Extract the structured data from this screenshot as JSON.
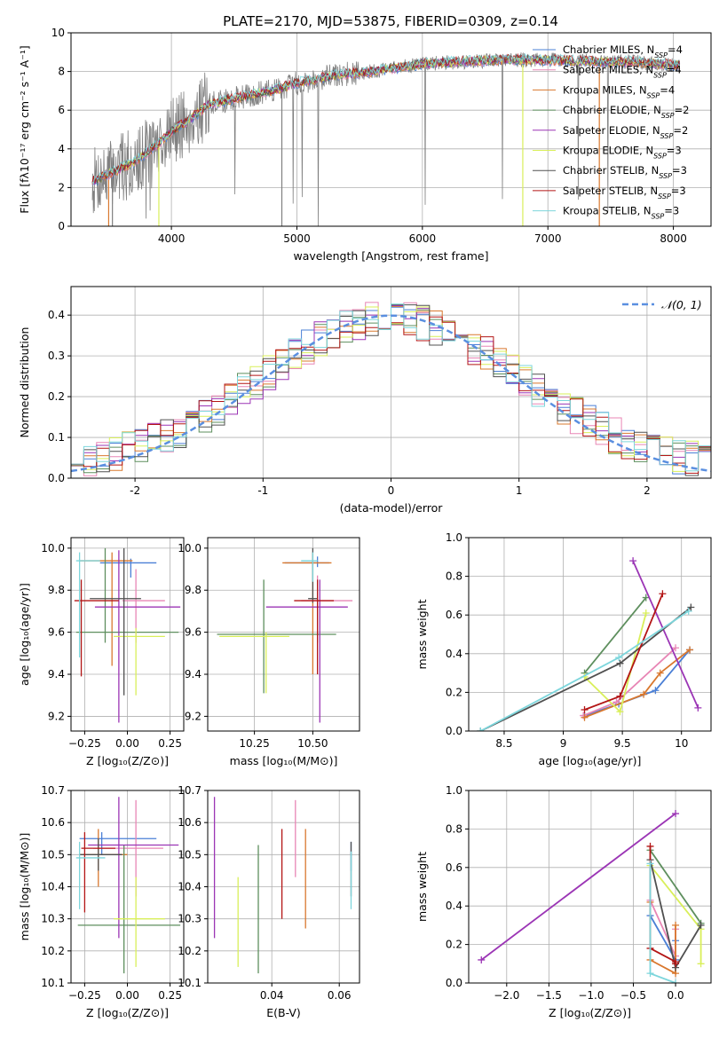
{
  "title": "PLATE=2170, MJD=53875, FIBERID=0309, z=0.14",
  "series": [
    {
      "name": "Chabrier MILES",
      "nssp": "4",
      "color": "#4a7fd6"
    },
    {
      "name": "Salpeter MILES",
      "nssp": "4",
      "color": "#e886b5"
    },
    {
      "name": "Kroupa MILES",
      "nssp": "4",
      "color": "#d9782e"
    },
    {
      "name": "Chabrier ELODIE",
      "nssp": "2",
      "color": "#5e8f5e"
    },
    {
      "name": "Salpeter ELODIE",
      "nssp": "2",
      "color": "#9b35b5"
    },
    {
      "name": "Kroupa ELODIE",
      "nssp": "3",
      "color": "#d9ef5a"
    },
    {
      "name": "Chabrier STELIB",
      "nssp": "3",
      "color": "#505050"
    },
    {
      "name": "Salpeter STELIB",
      "nssp": "3",
      "color": "#b31515"
    },
    {
      "name": "Kroupa STELIB",
      "nssp": "3",
      "color": "#7dd6dc"
    }
  ],
  "chart_data": [
    {
      "id": "spectrum",
      "type": "line",
      "xlabel": "wavelength [Angstrom, rest frame]",
      "ylabel": "Flux [fλ10⁻¹⁷ erg cm⁻² s⁻¹ A⁻¹]",
      "xlim": [
        3200,
        8300
      ],
      "ylim": [
        0,
        10
      ],
      "xticks": [
        4000,
        5000,
        6000,
        7000,
        8000
      ],
      "yticks": [
        0,
        2,
        4,
        6,
        8,
        10
      ],
      "data_color": "#808080",
      "continuum_x": [
        3370,
        3500,
        3700,
        3900,
        4000,
        4100,
        4300,
        4500,
        4800,
        5000,
        5300,
        5600,
        6000,
        6300,
        6600,
        7000,
        7400,
        7700,
        8050
      ],
      "continuum_y": [
        2.3,
        2.7,
        3.3,
        4.3,
        4.9,
        5.3,
        6.3,
        6.6,
        7.0,
        7.4,
        7.8,
        8.0,
        8.4,
        8.5,
        8.6,
        8.6,
        8.5,
        8.5,
        8.3
      ]
    },
    {
      "id": "residuals",
      "type": "step-histogram",
      "xlabel": "(data-model)/error",
      "ylabel": "Normed distribution",
      "xlim": [
        -2.5,
        2.5
      ],
      "ylim": [
        0,
        0.47
      ],
      "xticks": [
        -2,
        -1,
        0,
        1,
        2
      ],
      "yticks": [
        0.0,
        0.1,
        0.2,
        0.3,
        0.4
      ],
      "legend": "𝒩(0, 1)",
      "legend_color": "#5a8fe0",
      "legend_position": "top-right"
    },
    {
      "id": "age-vs-Z",
      "type": "errorbar",
      "xlabel": "Z [log₁₀(Z/Z⊙)]",
      "ylabel": "age  [log₁₀(age/yr)]",
      "xlim": [
        -0.33,
        0.33
      ],
      "ylim": [
        9.13,
        10.05
      ],
      "xticks": [
        -0.25,
        0.0,
        0.25
      ],
      "xticklabels": [
        "−0.25",
        "0.00",
        "0.25"
      ],
      "yticks": [
        9.2,
        9.4,
        9.6,
        9.8,
        10.0
      ],
      "points": [
        {
          "s": 0,
          "x": 0.02,
          "y": 9.93,
          "xerr": [
            0.18,
            0.15
          ],
          "yerr": [
            0.07,
            0.02
          ]
        },
        {
          "s": 1,
          "x": 0.05,
          "y": 9.75,
          "xerr": [
            0.08,
            0.17
          ],
          "yerr": [
            0.2,
            0.15
          ]
        },
        {
          "s": 2,
          "x": -0.09,
          "y": 9.94,
          "xerr": [
            0.19,
            0.12
          ],
          "yerr": [
            0.5,
            0.04
          ]
        },
        {
          "s": 3,
          "x": -0.13,
          "y": 9.6,
          "xerr": [
            0.17,
            0.43
          ],
          "yerr": [
            0.05,
            0.4
          ]
        },
        {
          "s": 4,
          "x": -0.05,
          "y": 9.72,
          "xerr": [
            0.14,
            0.36
          ],
          "yerr": [
            0.55,
            0.27
          ]
        },
        {
          "s": 5,
          "x": 0.05,
          "y": 9.58,
          "xerr": [
            0.13,
            0.17
          ],
          "yerr": [
            0.28,
            0.04
          ]
        },
        {
          "s": 6,
          "x": -0.02,
          "y": 9.76,
          "xerr": [
            0.2,
            0.1
          ],
          "yerr": [
            0.46,
            0.24
          ]
        },
        {
          "s": 7,
          "x": -0.27,
          "y": 9.75,
          "xerr": [
            0.04,
            0.22
          ],
          "yerr": [
            0.36,
            0.1
          ]
        },
        {
          "s": 8,
          "x": -0.28,
          "y": 9.94,
          "xerr": [
            0.02,
            0.12
          ],
          "yerr": [
            0.46,
            0.04
          ]
        }
      ]
    },
    {
      "id": "age-vs-mass",
      "type": "errorbar",
      "xlabel": "mass [log₁₀(M/M⊙)]",
      "ylabel": "",
      "xlim": [
        10.05,
        10.7
      ],
      "ylim": [
        9.13,
        10.05
      ],
      "xticks": [
        10.25,
        10.5
      ],
      "xticklabels": [
        "10.25",
        "10.50"
      ],
      "yticks": [
        9.2,
        9.4,
        9.6,
        9.8,
        10.0
      ],
      "points": [
        {
          "s": 0,
          "x": 10.52,
          "y": 9.93,
          "xerr": [
            0.14,
            0.05
          ],
          "yerr": [
            0.02,
            0.03
          ]
        },
        {
          "s": 1,
          "x": 10.52,
          "y": 9.75,
          "xerr": [
            0.07,
            0.15
          ],
          "yerr": [
            0.2,
            0.12
          ]
        },
        {
          "s": 2,
          "x": 10.5,
          "y": 9.93,
          "xerr": [
            0.13,
            0.08
          ],
          "yerr": [
            0.53,
            0.05
          ]
        },
        {
          "s": 3,
          "x": 10.29,
          "y": 9.59,
          "xerr": [
            0.2,
            0.31
          ],
          "yerr": [
            0.28,
            0.26
          ]
        },
        {
          "s": 4,
          "x": 10.53,
          "y": 9.72,
          "xerr": [
            0.23,
            0.12
          ],
          "yerr": [
            0.55,
            0.13
          ]
        },
        {
          "s": 5,
          "x": 10.3,
          "y": 9.58,
          "xerr": [
            0.2,
            0.1
          ],
          "yerr": [
            0.27,
            0.02
          ]
        },
        {
          "s": 6,
          "x": 10.5,
          "y": 9.76,
          "xerr": [
            0.02,
            0.02
          ],
          "yerr": [
            0.02,
            0.24
          ]
        },
        {
          "s": 7,
          "x": 10.52,
          "y": 9.75,
          "xerr": [
            0.1,
            0.07
          ],
          "yerr": [
            0.35,
            0.1
          ]
        },
        {
          "s": 8,
          "x": 10.5,
          "y": 9.94,
          "xerr": [
            0.05,
            0.02
          ],
          "yerr": [
            0.1,
            0.04
          ]
        }
      ]
    },
    {
      "id": "weight-vs-age",
      "type": "line",
      "xlabel": "age  [log₁₀(age/yr)]",
      "ylabel": "mass weight",
      "xlim": [
        8.2,
        10.25
      ],
      "ylim": [
        0,
        1
      ],
      "xticks": [
        8.5,
        9.0,
        9.5,
        10.0
      ],
      "yticks": [
        0.0,
        0.2,
        0.4,
        0.6,
        0.8,
        1.0
      ],
      "lines": [
        {
          "s": 0,
          "x": [
            9.18,
            9.47,
            9.78,
            10.07
          ],
          "y": [
            0.08,
            0.14,
            0.21,
            0.42
          ]
        },
        {
          "s": 1,
          "x": [
            9.17,
            9.45,
            9.95
          ],
          "y": [
            0.08,
            0.15,
            0.43
          ]
        },
        {
          "s": 2,
          "x": [
            9.18,
            9.68,
            9.82,
            10.07
          ],
          "y": [
            0.07,
            0.19,
            0.3,
            0.42
          ]
        },
        {
          "s": 3,
          "x": [
            9.18,
            9.7
          ],
          "y": [
            0.3,
            0.69
          ]
        },
        {
          "s": 4,
          "x": [
            9.59,
            10.14
          ],
          "y": [
            0.88,
            0.12
          ]
        },
        {
          "s": 5,
          "x": [
            9.18,
            9.48,
            9.7
          ],
          "y": [
            0.28,
            0.1,
            0.61
          ]
        },
        {
          "s": 6,
          "x": [
            8.3,
            9.48,
            10.08
          ],
          "y": [
            0.0,
            0.35,
            0.64
          ]
        },
        {
          "s": 7,
          "x": [
            9.18,
            9.48,
            9.84
          ],
          "y": [
            0.11,
            0.18,
            0.71
          ]
        },
        {
          "s": 8,
          "x": [
            8.3,
            9.47,
            10.06
          ],
          "y": [
            0.0,
            0.38,
            0.62
          ]
        }
      ]
    },
    {
      "id": "mass-vs-Z",
      "type": "errorbar",
      "xlabel": "Z [log₁₀(Z/Z⊙)]",
      "ylabel": "mass [log₁₀(M/M⊙)]",
      "xlim": [
        -0.33,
        0.33
      ],
      "ylim": [
        10.1,
        10.7
      ],
      "xticks": [
        -0.25,
        0.0,
        0.25
      ],
      "xticklabels": [
        "−0.25",
        "0.00",
        "0.25"
      ],
      "yticks": [
        10.1,
        10.2,
        10.3,
        10.4,
        10.5,
        10.6,
        10.7
      ],
      "points": [
        {
          "s": 0,
          "x": -0.15,
          "y": 10.55,
          "xerr": [
            0.13,
            0.32
          ],
          "yerr": [
            0.05,
            0.02
          ]
        },
        {
          "s": 1,
          "x": 0.05,
          "y": 10.52,
          "xerr": [
            0.25,
            0.16
          ],
          "yerr": [
            0.15,
            0.15
          ]
        },
        {
          "s": 2,
          "x": -0.17,
          "y": 10.5,
          "xerr": [
            0.11,
            0.17
          ],
          "yerr": [
            0.1,
            0.08
          ]
        },
        {
          "s": 3,
          "x": -0.02,
          "y": 10.28,
          "xerr": [
            0.27,
            0.33
          ],
          "yerr": [
            0.15,
            0.25
          ]
        },
        {
          "s": 4,
          "x": -0.05,
          "y": 10.53,
          "xerr": [
            0.18,
            0.35
          ],
          "yerr": [
            0.29,
            0.15
          ]
        },
        {
          "s": 5,
          "x": 0.05,
          "y": 10.3,
          "xerr": [
            0.13,
            0.17
          ],
          "yerr": [
            0.15,
            0.13
          ]
        },
        {
          "s": 6,
          "x": -0.17,
          "y": 10.5,
          "xerr": [
            0.11,
            0.14
          ],
          "yerr": [
            0.05,
            0.05
          ]
        },
        {
          "s": 7,
          "x": -0.25,
          "y": 10.52,
          "xerr": [
            0.02,
            0.18
          ],
          "yerr": [
            0.2,
            0.05
          ]
        },
        {
          "s": 8,
          "x": -0.28,
          "y": 10.49,
          "xerr": [
            0.02,
            0.15
          ],
          "yerr": [
            0.16,
            0.05
          ]
        }
      ]
    },
    {
      "id": "mass-vs-ebv",
      "type": "errorbar",
      "xlabel": "E(B-V)",
      "ylabel": "",
      "xlim": [
        0.021,
        0.066
      ],
      "ylim": [
        10.1,
        10.7
      ],
      "xticks": [
        0.04,
        0.06
      ],
      "xticklabels": [
        "0.04",
        "0.06"
      ],
      "yticks": [
        10.1,
        10.2,
        10.3,
        10.4,
        10.5,
        10.6,
        10.7
      ],
      "points": [
        {
          "s": 0,
          "x": 0.0635,
          "y": 10.5,
          "xerr": [
            0,
            0
          ],
          "yerr": [
            0.05,
            0.04
          ]
        },
        {
          "s": 1,
          "x": 0.047,
          "y": 10.55,
          "xerr": [
            0,
            0
          ],
          "yerr": [
            0.12,
            0.12
          ]
        },
        {
          "s": 2,
          "x": 0.05,
          "y": 10.42,
          "xerr": [
            0,
            0
          ],
          "yerr": [
            0.15,
            0.16
          ]
        },
        {
          "s": 3,
          "x": 0.036,
          "y": 10.33,
          "xerr": [
            0,
            0
          ],
          "yerr": [
            0.2,
            0.2
          ]
        },
        {
          "s": 4,
          "x": 0.023,
          "y": 10.46,
          "xerr": [
            0,
            0
          ],
          "yerr": [
            0.22,
            0.22
          ]
        },
        {
          "s": 5,
          "x": 0.03,
          "y": 10.29,
          "xerr": [
            0,
            0
          ],
          "yerr": [
            0.14,
            0.14
          ]
        },
        {
          "s": 6,
          "x": 0.0635,
          "y": 10.45,
          "xerr": [
            0,
            0
          ],
          "yerr": [
            0.08,
            0.09
          ]
        },
        {
          "s": 7,
          "x": 0.043,
          "y": 10.44,
          "xerr": [
            0,
            0
          ],
          "yerr": [
            0.14,
            0.14
          ]
        },
        {
          "s": 8,
          "x": 0.0635,
          "y": 10.42,
          "xerr": [
            0,
            0
          ],
          "yerr": [
            0.09,
            0.09
          ]
        }
      ]
    },
    {
      "id": "weight-vs-Z",
      "type": "line",
      "xlabel": "Z [log₁₀(Z/Z⊙)]",
      "ylabel": "mass weight",
      "xlim": [
        -2.45,
        0.42
      ],
      "ylim": [
        0,
        1
      ],
      "xticks": [
        -2.0,
        -1.5,
        -1.0,
        -0.5,
        0.0
      ],
      "xticklabels": [
        "−2.0",
        "−1.5",
        "−1.0",
        "−0.5",
        "0.0"
      ],
      "yticks": [
        0.0,
        0.2,
        0.4,
        0.6,
        0.8,
        1.0
      ],
      "lines": [
        {
          "s": 0,
          "x": [
            -0.3,
            0.0,
            0.0
          ],
          "y": [
            0.35,
            0.12,
            0.22
          ]
        },
        {
          "s": 1,
          "x": [
            -0.3,
            0.0,
            0.0
          ],
          "y": [
            0.43,
            0.14,
            0.28
          ]
        },
        {
          "s": 2,
          "x": [
            -0.3,
            -0.3,
            0.0,
            0.0
          ],
          "y": [
            0.42,
            0.12,
            0.05,
            0.3
          ]
        },
        {
          "s": 3,
          "x": [
            -0.3,
            0.3
          ],
          "y": [
            0.69,
            0.31
          ]
        },
        {
          "s": 4,
          "x": [
            -2.3,
            0.0
          ],
          "y": [
            0.12,
            0.88
          ]
        },
        {
          "s": 5,
          "x": [
            -0.3,
            0.3,
            0.3
          ],
          "y": [
            0.61,
            0.28,
            0.1
          ]
        },
        {
          "s": 6,
          "x": [
            -0.3,
            0.0,
            0.3
          ],
          "y": [
            0.64,
            0.08,
            0.3
          ]
        },
        {
          "s": 7,
          "x": [
            -0.3,
            -0.3,
            0.0,
            0.0
          ],
          "y": [
            0.71,
            0.18,
            0.11,
            0.1
          ]
        },
        {
          "s": 8,
          "x": [
            -0.3,
            -0.3,
            0.0
          ],
          "y": [
            0.62,
            0.05,
            0.0
          ]
        }
      ]
    }
  ]
}
